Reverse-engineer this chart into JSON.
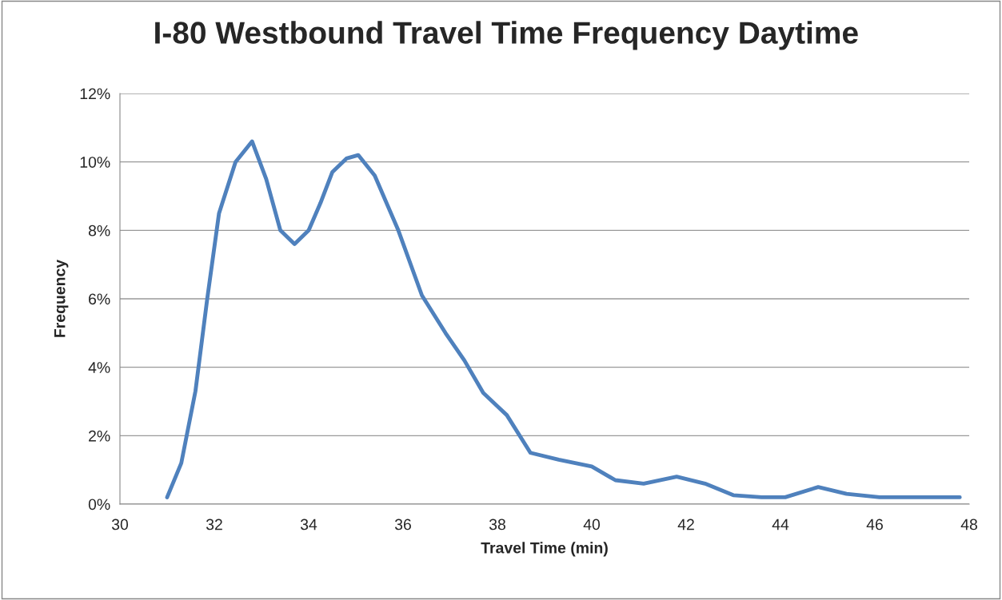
{
  "chart_data": {
    "type": "line",
    "title": "I-80 Westbound Travel Time Frequency Daytime",
    "xlabel": "Travel Time (min)",
    "ylabel": "Frequency",
    "series": [
      {
        "color": "#4f81bd",
        "x": [
          31.0,
          31.3,
          31.6,
          31.85,
          32.1,
          32.45,
          32.8,
          33.1,
          33.4,
          33.7,
          34.0,
          34.25,
          34.5,
          34.8,
          35.05,
          35.4,
          35.9,
          36.4,
          36.9,
          37.3,
          37.7,
          38.2,
          38.7,
          39.3,
          40.0,
          40.5,
          41.1,
          41.8,
          42.4,
          43.0,
          43.6,
          44.1,
          44.8,
          45.4,
          46.1,
          47.0,
          47.8
        ],
        "values": [
          0.2,
          1.2,
          3.3,
          6.0,
          8.5,
          10.0,
          10.6,
          9.5,
          8.0,
          7.6,
          8.0,
          8.8,
          9.7,
          10.1,
          10.2,
          9.6,
          8.0,
          6.1,
          5.0,
          4.2,
          3.25,
          2.6,
          1.5,
          1.3,
          1.1,
          0.7,
          0.6,
          0.8,
          0.6,
          0.26,
          0.2,
          0.2,
          0.5,
          0.3,
          0.2,
          0.2,
          0.2
        ]
      }
    ],
    "xlim": [
      30,
      48
    ],
    "xticks": [
      30,
      32,
      34,
      36,
      38,
      40,
      42,
      44,
      46,
      48
    ],
    "ylim": [
      0,
      12
    ],
    "yticks": [
      {
        "value": 0,
        "label": "0%"
      },
      {
        "value": 2,
        "label": "2%"
      },
      {
        "value": 4,
        "label": "4%"
      },
      {
        "value": 6,
        "label": "6%"
      },
      {
        "value": 8,
        "label": "8%"
      },
      {
        "value": 10,
        "label": "10%"
      },
      {
        "value": 12,
        "label": "12%"
      }
    ],
    "grid": "y",
    "line_style": "solid"
  }
}
